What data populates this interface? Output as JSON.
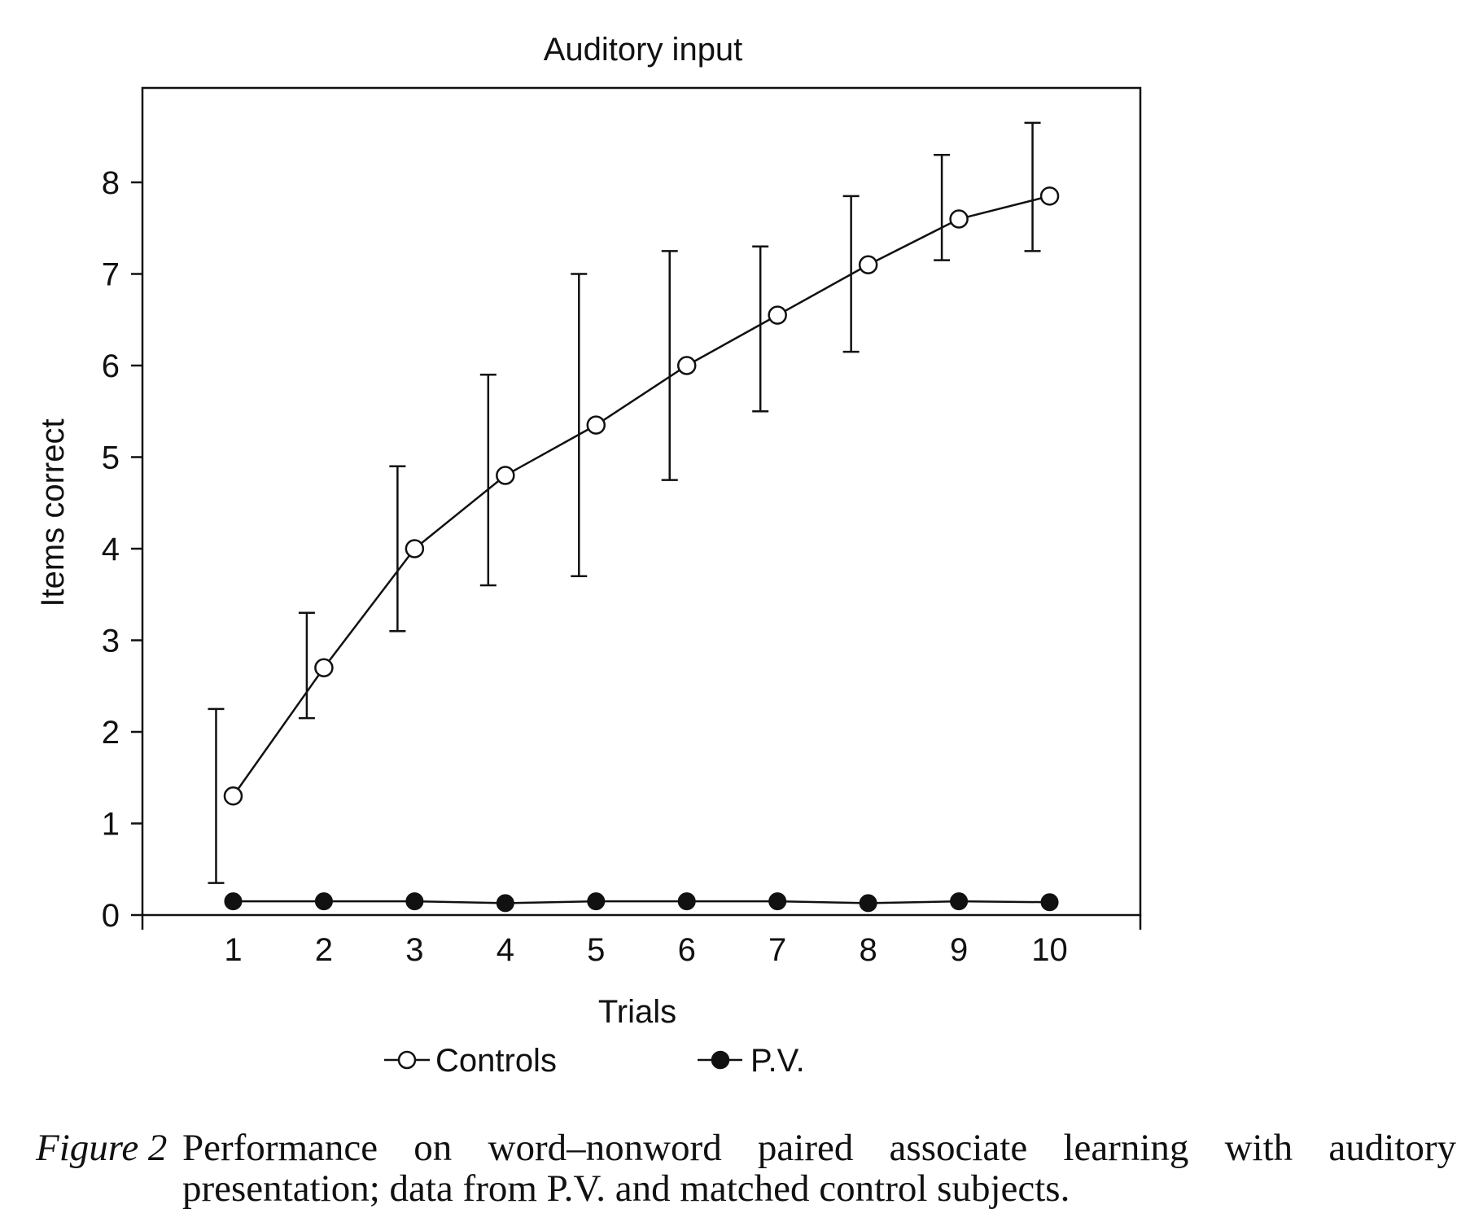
{
  "chart_data": {
    "type": "line",
    "title": "Auditory input",
    "xlabel": "Trials",
    "ylabel": "Items correct",
    "x": [
      1,
      2,
      3,
      4,
      5,
      6,
      7,
      8,
      9,
      10
    ],
    "x_ticks": [
      "1",
      "2",
      "3",
      "4",
      "5",
      "6",
      "7",
      "8",
      "9",
      "10"
    ],
    "y_ticks": [
      "0",
      "1",
      "2",
      "3",
      "4",
      "5",
      "6",
      "7",
      "8"
    ],
    "xlim": [
      0,
      11
    ],
    "ylim": [
      0,
      9
    ],
    "legend_position": "bottom",
    "grid": false,
    "series": [
      {
        "name": "Controls",
        "marker": "open-circle",
        "values": [
          1.3,
          2.7,
          4.0,
          4.8,
          5.35,
          6.0,
          6.55,
          7.1,
          7.6,
          7.85
        ],
        "error_low": [
          0.35,
          2.15,
          3.1,
          3.6,
          3.7,
          4.75,
          5.5,
          6.15,
          7.15,
          7.25
        ],
        "error_high": [
          2.25,
          3.3,
          4.9,
          5.9,
          7.0,
          7.25,
          7.3,
          7.85,
          8.3,
          8.65
        ]
      },
      {
        "name": "P.V.",
        "marker": "filled-circle",
        "values": [
          0.15,
          0.15,
          0.15,
          0.13,
          0.15,
          0.15,
          0.15,
          0.13,
          0.15,
          0.14
        ]
      }
    ]
  },
  "caption": {
    "label": "Figure 2",
    "text": "Performance on word–nonword paired associate learning with auditory presentation; data from P.V. and matched control subjects."
  },
  "colors": {
    "ink": "#111111",
    "background": "#ffffff"
  }
}
